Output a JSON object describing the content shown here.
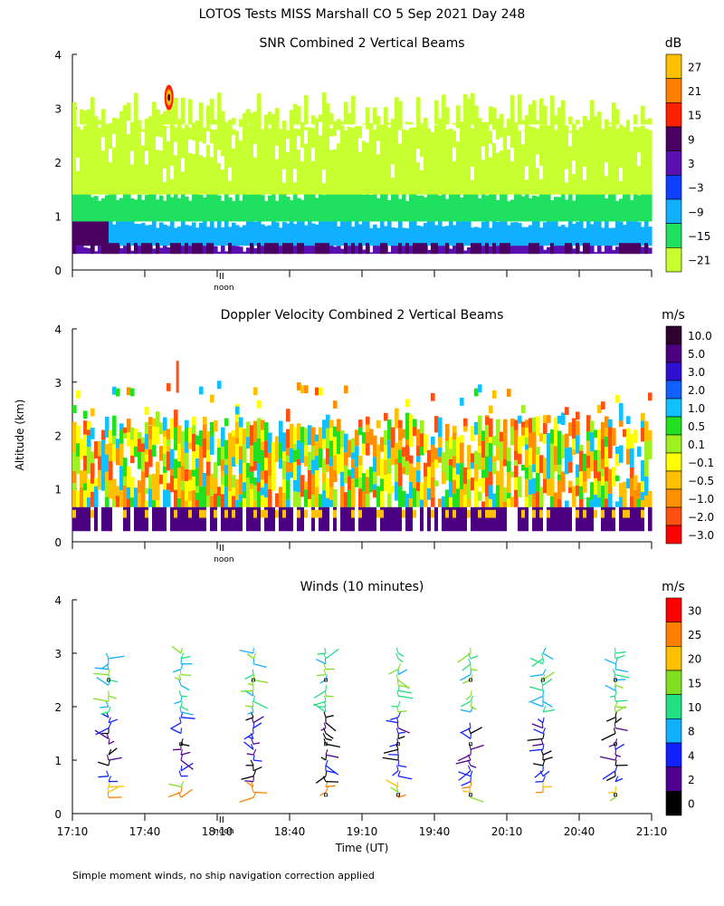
{
  "main_title": "LOTOS Tests MISS Marshall CO    5 Sep 2021 Day 248",
  "y_axis_label": "Altitude (km)",
  "x_axis_label": "Time (UT)",
  "footnote": "Simple moment winds, no ship navigation correction applied",
  "noon_label": "noon",
  "chart_data": [
    {
      "type": "heatmap",
      "title": "SNR Combined 2 Vertical Beams",
      "ylabel": "Altitude (km)",
      "ylim": [
        0,
        4
      ],
      "y_ticks": [
        "0",
        "1",
        "2",
        "3",
        "4"
      ],
      "colorbar": {
        "unit": "dB",
        "levels": [
          "27",
          "21",
          "15",
          "9",
          "3",
          "−3",
          "−9",
          "−15",
          "−21"
        ],
        "colors": [
          "#ffc000",
          "#ff8000",
          "#ff2000",
          "#4a0060",
          "#5a10b0",
          "#1040ff",
          "#10b0ff",
          "#20e060",
          "#c8ff30"
        ]
      },
      "time_range_minutes": [
        0,
        240
      ],
      "altitude_bands": [
        {
          "bottom": 0.3,
          "top": 0.45,
          "level": "3"
        },
        {
          "bottom": 0.45,
          "top": 0.9,
          "level": "−9"
        },
        {
          "bottom": 0.9,
          "top": 1.4,
          "level": "−15"
        },
        {
          "bottom": 1.4,
          "top": 2.7,
          "level": "−21"
        }
      ],
      "annotations": [
        {
          "time_minutes": 40,
          "altitude": 3.2,
          "level": "27"
        }
      ]
    },
    {
      "type": "heatmap",
      "title": "Doppler Velocity Combined 2 Vertical Beams",
      "ylabel": "Altitude (km)",
      "ylim": [
        0,
        4
      ],
      "y_ticks": [
        "0",
        "1",
        "2",
        "3",
        "4"
      ],
      "colorbar": {
        "unit": "m/s",
        "levels": [
          "10.0",
          "5.0",
          "3.0",
          "2.0",
          "1.0",
          "0.5",
          "0.1",
          "−0.1",
          "−0.5",
          "−1.0",
          "−2.0",
          "−3.0"
        ],
        "colors": [
          "#300030",
          "#4a0080",
          "#3010d0",
          "#1060ff",
          "#10c0ff",
          "#20e020",
          "#a0f020",
          "#ffff00",
          "#ffc000",
          "#ff9000",
          "#ff5010",
          "#ff0000"
        ]
      },
      "time_range_minutes": [
        0,
        240
      ],
      "altitude_bands": [
        {
          "bottom": 0.2,
          "top": 0.65,
          "level": "10.0"
        },
        {
          "bottom": 0.65,
          "top": 1.0,
          "level": "−0.5"
        },
        {
          "bottom": 1.0,
          "top": 2.0,
          "level": "−1.0"
        },
        {
          "bottom": 2.0,
          "top": 2.8,
          "level": "0.5"
        }
      ]
    },
    {
      "type": "scatter",
      "title": "Winds (10 minutes)",
      "ylabel": "Altitude (km)",
      "xlabel": "Time (UT)",
      "ylim": [
        0,
        4
      ],
      "y_ticks": [
        "0",
        "1",
        "2",
        "3",
        "4"
      ],
      "x_ticks": [
        "17:10",
        "17:40",
        "18:10",
        "18:40",
        "19:10",
        "19:40",
        "20:10",
        "20:40",
        "21:10"
      ],
      "time_range_minutes": [
        0,
        240
      ],
      "colorbar": {
        "unit": "m/s",
        "levels": [
          "30",
          "25",
          "20",
          "15",
          "10",
          "8",
          "4",
          "2",
          "0"
        ],
        "colors": [
          "#ff0000",
          "#ff8000",
          "#ffc000",
          "#80e020",
          "#20e080",
          "#10b0ff",
          "#1020ff",
          "#500090",
          "#000000"
        ]
      },
      "profile_times_minutes": [
        15,
        45,
        75,
        105,
        135,
        165,
        195,
        225
      ],
      "profile_altitude_range_km": [
        0.3,
        3.1
      ]
    }
  ]
}
